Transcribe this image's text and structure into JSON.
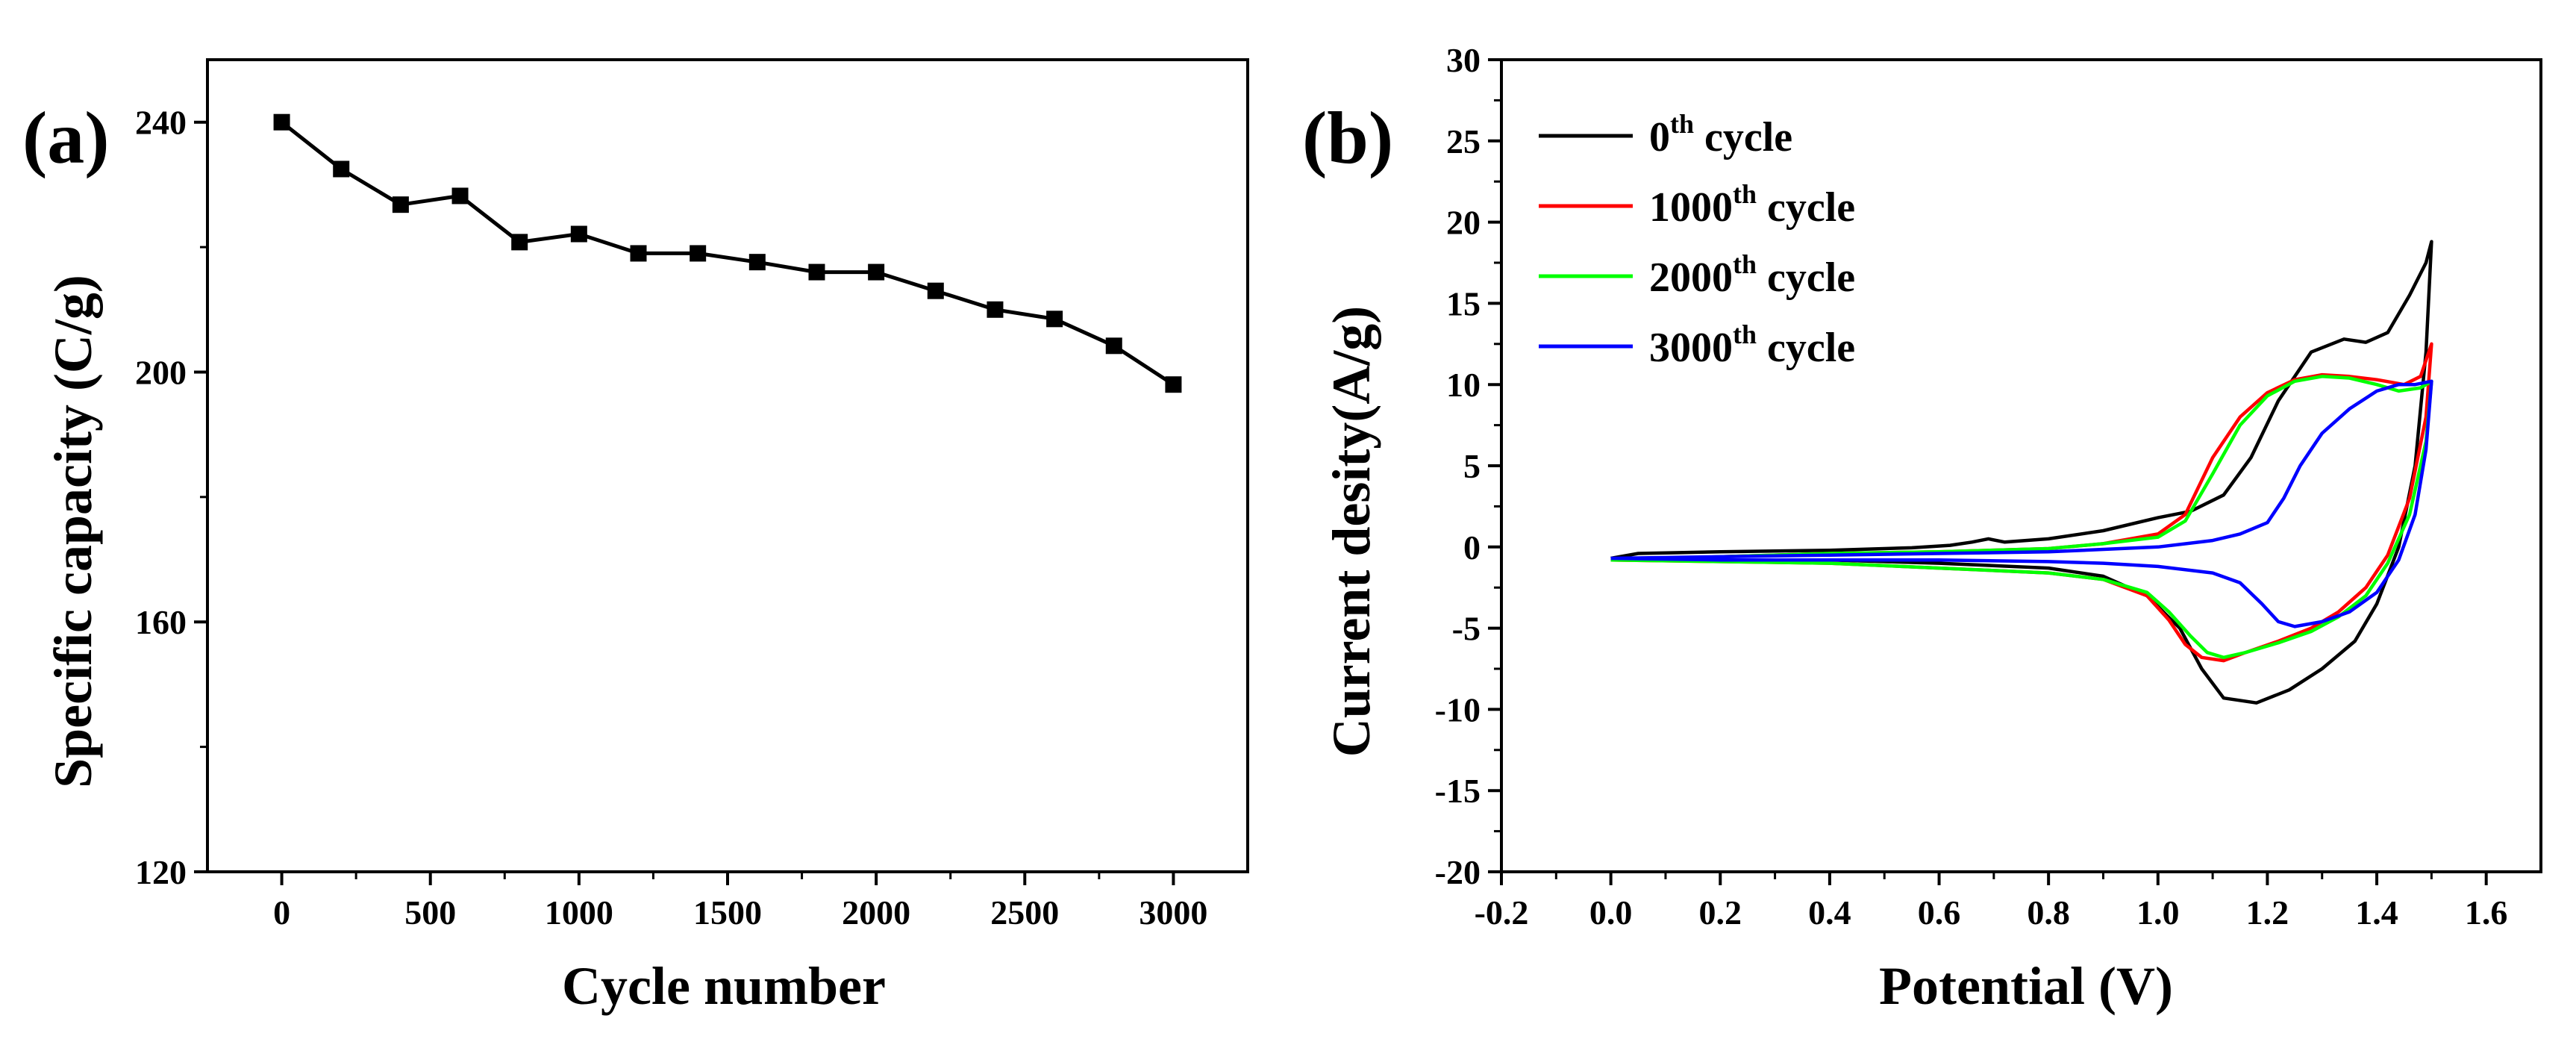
{
  "chart_data": [
    {
      "type": "line",
      "panel_label": "(a)",
      "xlabel": "Cycle number",
      "ylabel": "Specific capacity (C/g)",
      "xlim": [
        -250,
        3250
      ],
      "ylim": [
        120,
        250
      ],
      "xticks": [
        0,
        500,
        1000,
        1500,
        2000,
        2500,
        3000
      ],
      "yticks": [
        120,
        160,
        200,
        240
      ],
      "grid": false,
      "marker": "square",
      "series": [
        {
          "name": "Specific capacity",
          "color": "#000000",
          "x": [
            0,
            200,
            400,
            600,
            800,
            1000,
            1200,
            1400,
            1600,
            1800,
            2000,
            2200,
            2400,
            2600,
            2800,
            3000
          ],
          "y": [
            240,
            232.5,
            226.8,
            228.2,
            220.8,
            222.1,
            219.0,
            219.0,
            217.6,
            216.0,
            216.0,
            213.0,
            210.0,
            208.5,
            204.2,
            198.0
          ]
        }
      ]
    },
    {
      "type": "line",
      "panel_label": "(b)",
      "xlabel": "Potential  (V)",
      "ylabel": "Current desity(A/g)",
      "xlim": [
        -0.2,
        1.7
      ],
      "ylim": [
        -20,
        30
      ],
      "xticks": [
        -0.2,
        0.0,
        0.2,
        0.4,
        0.6,
        0.8,
        1.0,
        1.2,
        1.4,
        1.6
      ],
      "xtick_labels": [
        "-0.2",
        "0.0",
        "0.2",
        "0.4",
        "0.6",
        "0.8",
        "1.0",
        "1.2",
        "1.4",
        "1.6"
      ],
      "yticks": [
        -20,
        -15,
        -10,
        -5,
        0,
        5,
        10,
        15,
        20,
        25,
        30
      ],
      "grid": false,
      "legend_position": "top-left",
      "series": [
        {
          "name": "0th cycle",
          "legend_num": "0",
          "legend_sup": "th",
          "legend_suffix": " cycle",
          "color": "#000000",
          "x": [
            0.0,
            0.05,
            0.2,
            0.4,
            0.55,
            0.62,
            0.66,
            0.69,
            0.72,
            0.8,
            0.9,
            1.0,
            1.06,
            1.12,
            1.17,
            1.22,
            1.28,
            1.34,
            1.38,
            1.42,
            1.46,
            1.49,
            1.5,
            1.49,
            1.47,
            1.44,
            1.4,
            1.36,
            1.3,
            1.24,
            1.18,
            1.12,
            1.08,
            1.04,
            0.98,
            0.9,
            0.8,
            0.6,
            0.4,
            0.2,
            0.05,
            0.0
          ],
          "y": [
            -0.7,
            -0.4,
            -0.3,
            -0.2,
            -0.05,
            0.1,
            0.3,
            0.5,
            0.3,
            0.5,
            1.0,
            1.8,
            2.2,
            3.2,
            5.5,
            9.0,
            12.0,
            12.8,
            12.6,
            13.2,
            15.5,
            17.5,
            18.8,
            12.0,
            5.0,
            0.0,
            -3.5,
            -5.8,
            -7.5,
            -8.8,
            -9.6,
            -9.3,
            -7.5,
            -5.0,
            -3.0,
            -1.8,
            -1.3,
            -1.0,
            -0.8,
            -0.8,
            -0.8,
            -0.7
          ]
        },
        {
          "name": "1000th cycle",
          "legend_num": "1000",
          "legend_sup": "th",
          "legend_suffix": " cycle",
          "color": "#ff0000",
          "x": [
            0.0,
            0.2,
            0.4,
            0.6,
            0.8,
            0.9,
            1.0,
            1.05,
            1.1,
            1.15,
            1.2,
            1.25,
            1.3,
            1.35,
            1.4,
            1.45,
            1.48,
            1.5,
            1.49,
            1.46,
            1.42,
            1.38,
            1.33,
            1.28,
            1.22,
            1.16,
            1.12,
            1.08,
            1.05,
            1.02,
            0.98,
            0.9,
            0.8,
            0.6,
            0.4,
            0.2,
            0.0
          ],
          "y": [
            -0.8,
            -0.6,
            -0.4,
            -0.3,
            -0.1,
            0.2,
            0.8,
            2.0,
            5.5,
            8.0,
            9.5,
            10.3,
            10.6,
            10.5,
            10.3,
            10.0,
            10.5,
            12.5,
            8.0,
            3.0,
            -0.5,
            -2.5,
            -4.0,
            -5.0,
            -5.8,
            -6.5,
            -7.0,
            -6.8,
            -6.0,
            -4.5,
            -3.0,
            -2.0,
            -1.6,
            -1.3,
            -1.0,
            -0.9,
            -0.8
          ]
        },
        {
          "name": "2000th cycle",
          "legend_num": "2000",
          "legend_sup": "th",
          "legend_suffix": " cycle",
          "color": "#00ff00",
          "x": [
            0.0,
            0.2,
            0.4,
            0.6,
            0.8,
            0.9,
            1.0,
            1.05,
            1.1,
            1.15,
            1.2,
            1.25,
            1.3,
            1.35,
            1.4,
            1.44,
            1.48,
            1.5,
            1.49,
            1.46,
            1.42,
            1.38,
            1.33,
            1.28,
            1.22,
            1.16,
            1.12,
            1.09,
            1.06,
            1.02,
            0.98,
            0.9,
            0.8,
            0.6,
            0.4,
            0.2,
            0.0
          ],
          "y": [
            -0.8,
            -0.6,
            -0.4,
            -0.3,
            -0.1,
            0.2,
            0.6,
            1.6,
            4.5,
            7.5,
            9.3,
            10.2,
            10.5,
            10.4,
            10.0,
            9.6,
            9.8,
            10.2,
            6.5,
            2.0,
            -1.0,
            -3.0,
            -4.3,
            -5.2,
            -5.9,
            -6.5,
            -6.8,
            -6.5,
            -5.5,
            -4.0,
            -2.8,
            -2.0,
            -1.6,
            -1.3,
            -1.0,
            -0.9,
            -0.8
          ]
        },
        {
          "name": "3000th cycle",
          "legend_num": "3000",
          "legend_sup": "th",
          "legend_suffix": " cycle",
          "color": "#0000ff",
          "x": [
            0.0,
            0.2,
            0.4,
            0.6,
            0.8,
            1.0,
            1.1,
            1.15,
            1.2,
            1.23,
            1.26,
            1.3,
            1.35,
            1.4,
            1.44,
            1.47,
            1.5,
            1.49,
            1.47,
            1.44,
            1.4,
            1.35,
            1.3,
            1.25,
            1.22,
            1.19,
            1.15,
            1.1,
            1.0,
            0.9,
            0.8,
            0.6,
            0.4,
            0.2,
            0.0
          ],
          "y": [
            -0.7,
            -0.6,
            -0.5,
            -0.4,
            -0.3,
            0.0,
            0.4,
            0.8,
            1.5,
            3.0,
            5.0,
            7.0,
            8.5,
            9.6,
            10.0,
            10.0,
            10.2,
            6.0,
            2.0,
            -0.8,
            -2.8,
            -4.0,
            -4.6,
            -4.9,
            -4.6,
            -3.5,
            -2.2,
            -1.6,
            -1.2,
            -1.0,
            -0.9,
            -0.8,
            -0.8,
            -0.8,
            -0.7
          ]
        }
      ]
    }
  ]
}
